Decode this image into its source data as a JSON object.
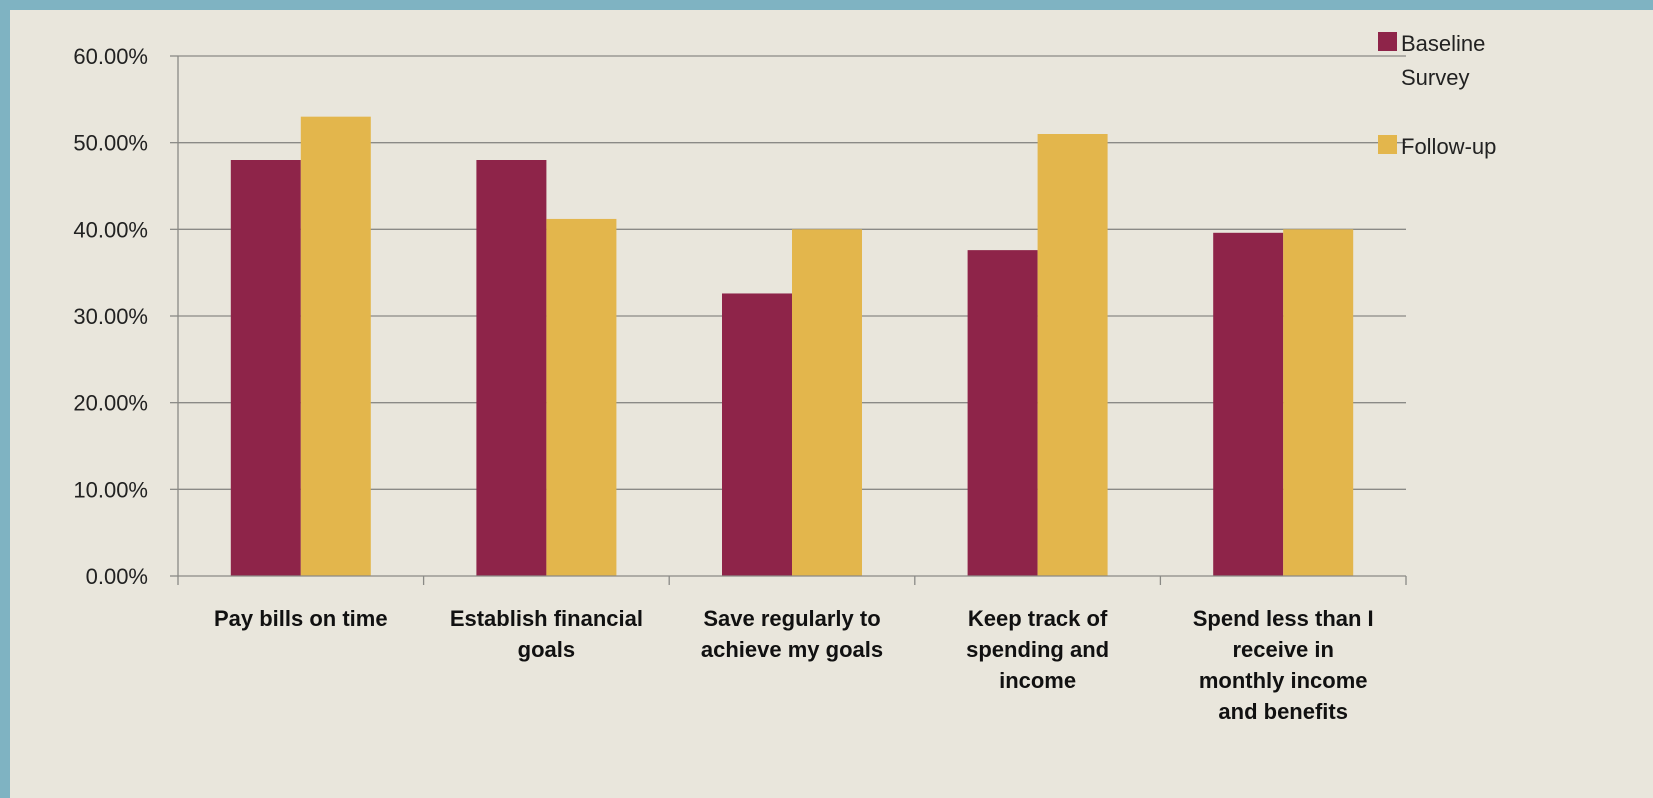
{
  "chart_data": {
    "type": "bar",
    "categories": [
      [
        "Pay bills on time"
      ],
      [
        "Establish  financial",
        "goals"
      ],
      [
        "Save regularly to",
        "achieve my goals"
      ],
      [
        "Keep track of",
        "spending and",
        "income"
      ],
      [
        "Spend less than I",
        "receive in",
        "monthly income",
        "and benefits"
      ]
    ],
    "series": [
      {
        "name": [
          "Baseline",
          "Survey"
        ],
        "color": "#8e2449",
        "values": [
          48.0,
          48.0,
          32.6,
          37.6,
          39.6
        ]
      },
      {
        "name": [
          "Follow-up"
        ],
        "color": "#e3b64c",
        "values": [
          53.0,
          41.2,
          40.0,
          51.0,
          40.0
        ]
      }
    ],
    "yticks": [
      "0.00%",
      "10.00%",
      "20.00%",
      "30.00%",
      "40.00%",
      "50.00%",
      "60.00%"
    ],
    "ylim": [
      0,
      60
    ],
    "grid": true,
    "legend": "top-right"
  }
}
